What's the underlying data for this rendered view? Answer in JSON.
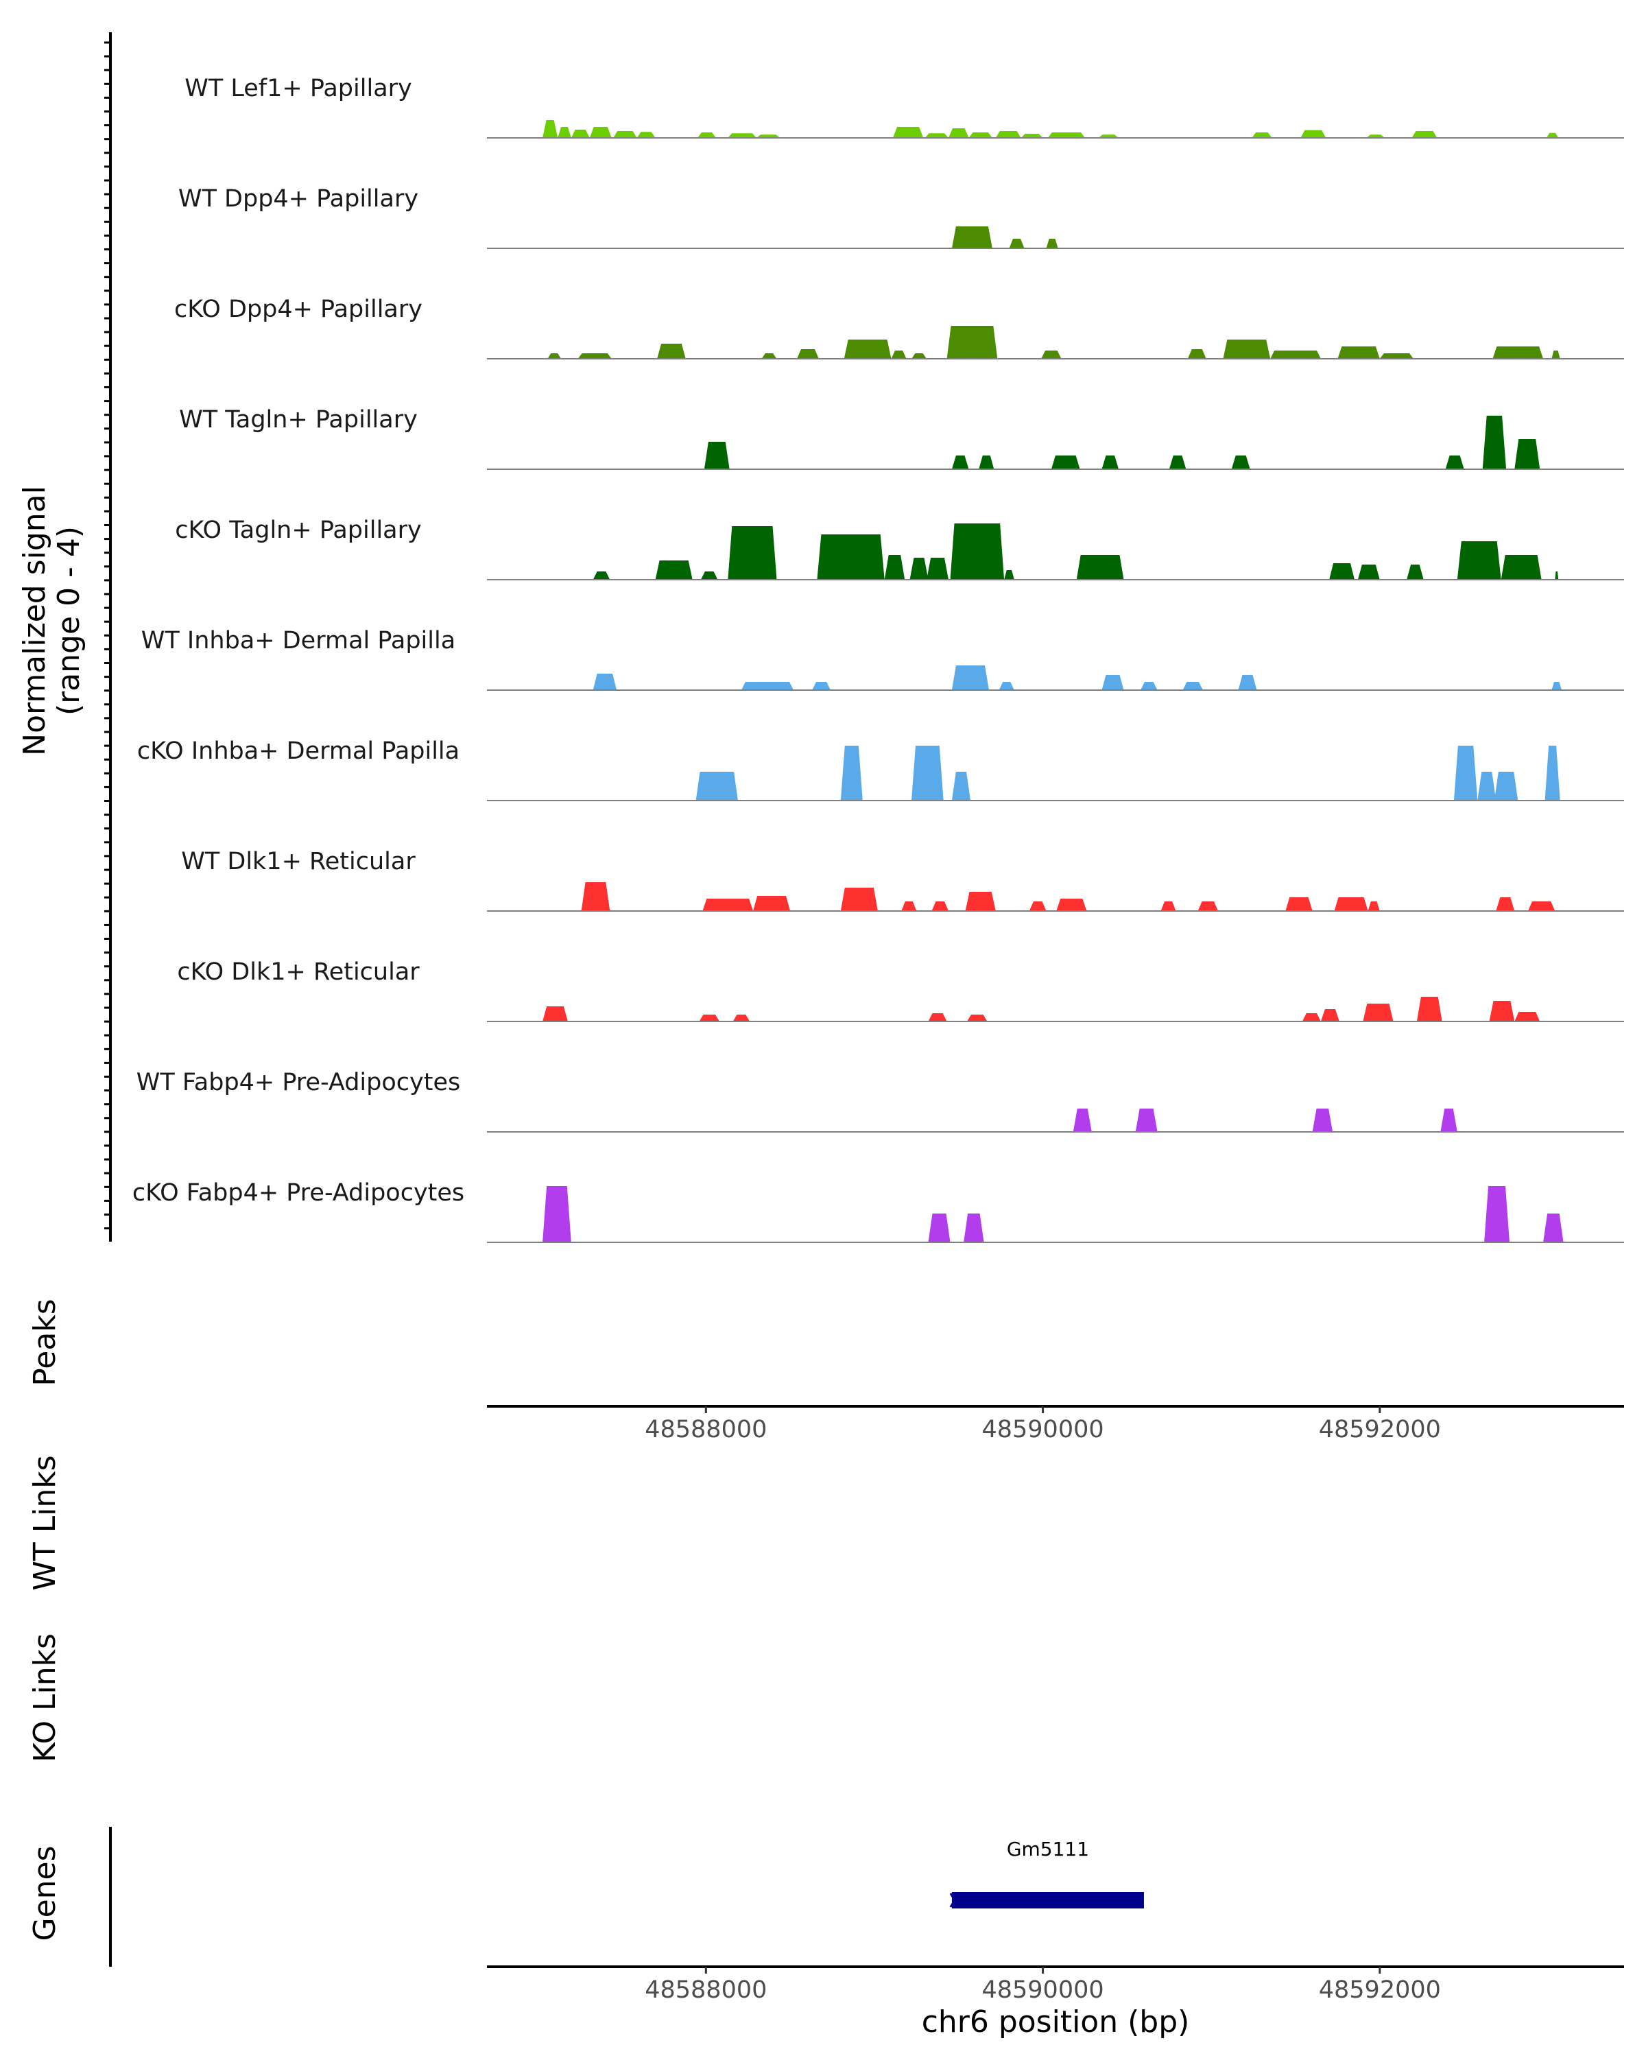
{
  "chart_data": {
    "type": "area",
    "title": "",
    "region": {
      "chromosome": "chr6",
      "start": 48586700,
      "end": 48593450
    },
    "ylabel_line1": "Normalized signal",
    "ylabel_line2": "(range 0 - 4)",
    "ylim": [
      0,
      4
    ],
    "xlabel": "chr6 position (bp)",
    "x_ticks": [
      {
        "value": 48588000,
        "label": "48588000"
      },
      {
        "value": 48590000,
        "label": "48590000"
      },
      {
        "value": 48592000,
        "label": "48592000"
      }
    ],
    "series": [
      {
        "name": "WT Lef1+ Papillary",
        "color": "#6ccd00",
        "peaks": [
          [
            48587030,
            48587120,
            0.65
          ],
          [
            48587120,
            48587200,
            0.4
          ],
          [
            48587200,
            48587310,
            0.3
          ],
          [
            48587310,
            48587440,
            0.4
          ],
          [
            48587450,
            48587590,
            0.25
          ],
          [
            48587590,
            48587700,
            0.22
          ],
          [
            48587950,
            48588060,
            0.2
          ],
          [
            48588130,
            48588300,
            0.17
          ],
          [
            48588300,
            48588440,
            0.12
          ],
          [
            48589110,
            48589290,
            0.4
          ],
          [
            48589300,
            48589440,
            0.17
          ],
          [
            48589440,
            48589560,
            0.35
          ],
          [
            48589560,
            48589700,
            0.2
          ],
          [
            48589720,
            48589870,
            0.25
          ],
          [
            48589870,
            48590000,
            0.15
          ],
          [
            48590030,
            48590250,
            0.2
          ],
          [
            48590330,
            48590450,
            0.12
          ],
          [
            48591240,
            48591360,
            0.2
          ],
          [
            48591530,
            48591680,
            0.28
          ],
          [
            48591920,
            48592030,
            0.12
          ],
          [
            48592190,
            48592340,
            0.25
          ],
          [
            48592990,
            48593060,
            0.18
          ]
        ]
      },
      {
        "name": "WT Dpp4+ Papillary",
        "color": "#4d8b00",
        "peaks": [
          [
            48589460,
            48589700,
            0.8
          ],
          [
            48589800,
            48589890,
            0.35
          ],
          [
            48590020,
            48590090,
            0.35
          ]
        ]
      },
      {
        "name": "cKO Dpp4+ Papillary",
        "color": "#4d8b00",
        "peaks": [
          [
            48587060,
            48587140,
            0.2
          ],
          [
            48587240,
            48587440,
            0.2
          ],
          [
            48587710,
            48587880,
            0.55
          ],
          [
            48588330,
            48588420,
            0.2
          ],
          [
            48588540,
            48588670,
            0.35
          ],
          [
            48588820,
            48589100,
            0.7
          ],
          [
            48589100,
            48589190,
            0.3
          ],
          [
            48589220,
            48589310,
            0.2
          ],
          [
            48589430,
            48589730,
            1.2
          ],
          [
            48589990,
            48590110,
            0.3
          ],
          [
            48590860,
            48590970,
            0.35
          ],
          [
            48591070,
            48591350,
            0.7
          ],
          [
            48591350,
            48591650,
            0.3
          ],
          [
            48591750,
            48592000,
            0.45
          ],
          [
            48592000,
            48592200,
            0.2
          ],
          [
            48592670,
            48592970,
            0.45
          ],
          [
            48593020,
            48593070,
            0.3
          ]
        ]
      },
      {
        "name": "WT Tagln+ Papillary",
        "color": "#006400",
        "peaks": [
          [
            48587990,
            48588140,
            1.0
          ],
          [
            48589460,
            48589560,
            0.5
          ],
          [
            48589620,
            48589710,
            0.5
          ],
          [
            48590050,
            48590220,
            0.5
          ],
          [
            48590350,
            48590450,
            0.5
          ],
          [
            48590750,
            48590850,
            0.5
          ],
          [
            48591120,
            48591230,
            0.5
          ],
          [
            48592390,
            48592500,
            0.5
          ],
          [
            48592610,
            48592750,
            1.95
          ],
          [
            48592800,
            48592950,
            1.1
          ]
        ]
      },
      {
        "name": "cKO Tagln+ Papillary",
        "color": "#006400",
        "peaks": [
          [
            48587330,
            48587430,
            0.3
          ],
          [
            48587700,
            48587920,
            0.7
          ],
          [
            48587970,
            48588070,
            0.3
          ],
          [
            48588130,
            48588420,
            1.95
          ],
          [
            48588660,
            48589060,
            1.65
          ],
          [
            48589060,
            48589180,
            0.9
          ],
          [
            48589210,
            48589320,
            0.8
          ],
          [
            48589310,
            48589440,
            0.8
          ],
          [
            48589450,
            48589770,
            2.05
          ],
          [
            48589770,
            48589830,
            0.35
          ],
          [
            48590200,
            48590480,
            0.9
          ],
          [
            48591700,
            48591850,
            0.6
          ],
          [
            48591870,
            48592000,
            0.55
          ],
          [
            48592160,
            48592260,
            0.55
          ],
          [
            48592460,
            48592720,
            1.4
          ],
          [
            48592720,
            48592960,
            0.9
          ],
          [
            48593040,
            48593060,
            0.3
          ]
        ]
      },
      {
        "name": "WT Inhba+ Dermal Papilla",
        "color": "#5aaae9",
        "peaks": [
          [
            48587330,
            48587470,
            0.6
          ],
          [
            48588210,
            48588520,
            0.3
          ],
          [
            48588630,
            48588740,
            0.3
          ],
          [
            48589460,
            48589680,
            0.9
          ],
          [
            48589740,
            48589830,
            0.3
          ],
          [
            48590350,
            48590480,
            0.55
          ],
          [
            48590580,
            48590680,
            0.3
          ],
          [
            48590830,
            48590950,
            0.3
          ],
          [
            48591160,
            48591270,
            0.55
          ],
          [
            48593020,
            48593080,
            0.3
          ]
        ]
      },
      {
        "name": "cKO Inhba+ Dermal Papilla",
        "color": "#5aaae9",
        "peaks": [
          [
            48587940,
            48588190,
            1.05
          ],
          [
            48588800,
            48588930,
            2.0
          ],
          [
            48589220,
            48589410,
            2.0
          ],
          [
            48589460,
            48589570,
            1.05
          ],
          [
            48592440,
            48592580,
            2.0
          ],
          [
            48592580,
            48592690,
            1.05
          ],
          [
            48592680,
            48592820,
            1.05
          ],
          [
            48592980,
            48593070,
            2.0
          ]
        ]
      },
      {
        "name": "WT Dlk1+ Reticular",
        "color": "#ff3030",
        "peaks": [
          [
            48587260,
            48587430,
            1.05
          ],
          [
            48587980,
            48588280,
            0.45
          ],
          [
            48588280,
            48588500,
            0.55
          ],
          [
            48588800,
            48589020,
            0.85
          ],
          [
            48589160,
            48589250,
            0.35
          ],
          [
            48589340,
            48589440,
            0.35
          ],
          [
            48589540,
            48589720,
            0.7
          ],
          [
            48589920,
            48590020,
            0.35
          ],
          [
            48590080,
            48590260,
            0.45
          ],
          [
            48590700,
            48590790,
            0.35
          ],
          [
            48590920,
            48591040,
            0.35
          ],
          [
            48591440,
            48591600,
            0.5
          ],
          [
            48591730,
            48591930,
            0.5
          ],
          [
            48591930,
            48592000,
            0.35
          ],
          [
            48592690,
            48592800,
            0.5
          ],
          [
            48592880,
            48593040,
            0.35
          ]
        ]
      },
      {
        "name": "cKO Dlk1+ Reticular",
        "color": "#ff3030",
        "peaks": [
          [
            48587030,
            48587180,
            0.55
          ],
          [
            48587960,
            48588080,
            0.25
          ],
          [
            48588160,
            48588260,
            0.25
          ],
          [
            48589320,
            48589430,
            0.3
          ],
          [
            48589550,
            48589670,
            0.25
          ],
          [
            48591540,
            48591650,
            0.3
          ],
          [
            48591650,
            48591760,
            0.45
          ],
          [
            48591900,
            48592080,
            0.65
          ],
          [
            48592220,
            48592370,
            0.9
          ],
          [
            48592650,
            48592800,
            0.75
          ],
          [
            48592800,
            48592950,
            0.35
          ]
        ]
      },
      {
        "name": "WT Fabp4+ Pre-Adipocytes",
        "color": "#b23ded",
        "peaks": [
          [
            48590180,
            48590290,
            0.85
          ],
          [
            48590550,
            48590680,
            0.85
          ],
          [
            48591600,
            48591720,
            0.85
          ],
          [
            48592360,
            48592460,
            0.85
          ]
        ]
      },
      {
        "name": "cKO Fabp4+ Pre-Adipocytes",
        "color": "#b23ded",
        "peaks": [
          [
            48587030,
            48587200,
            2.05
          ],
          [
            48589320,
            48589450,
            1.05
          ],
          [
            48589530,
            48589650,
            1.05
          ],
          [
            48592620,
            48592770,
            2.05
          ],
          [
            48592970,
            48593090,
            1.05
          ]
        ]
      }
    ],
    "extra_tracks": {
      "peaks_label": "Peaks",
      "wt_links_label": "WT Links",
      "ko_links_label": "KO Links",
      "genes_label": "Genes"
    },
    "genes": [
      {
        "name": "Gm5111",
        "start": 48589460,
        "end": 48590600,
        "strand": "-",
        "color": "#00008b"
      }
    ]
  }
}
